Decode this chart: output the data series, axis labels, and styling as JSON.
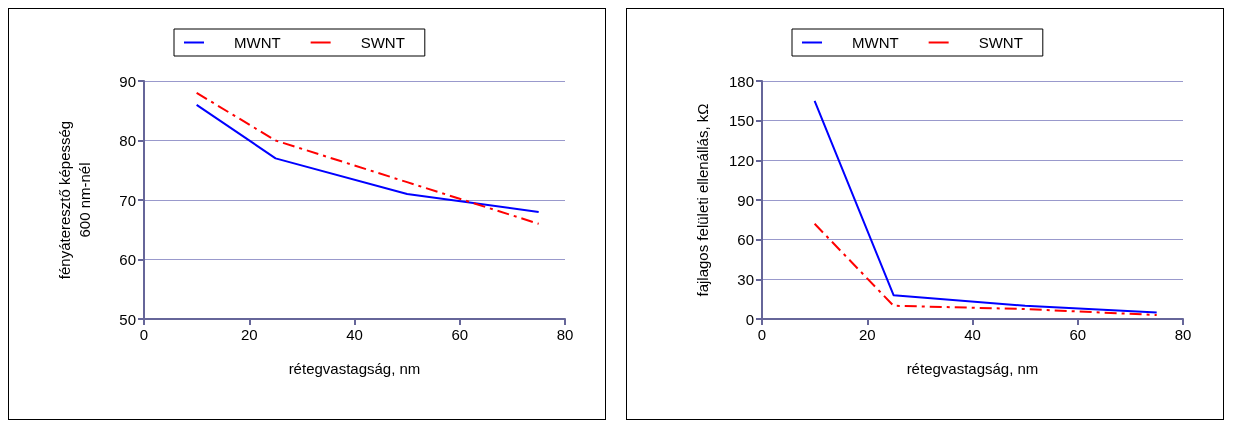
{
  "chart_data": [
    {
      "type": "line",
      "xlabel": "rétegvastagság, nm",
      "ylabel": "fényáteresztő képesség\n600 nm-nél",
      "x": [
        10,
        25,
        50,
        75
      ],
      "series": [
        {
          "name": "MWNT",
          "color": "#0000ff",
          "values": [
            86,
            77,
            71,
            68
          ],
          "line_style": "solid"
        },
        {
          "name": "SWNT",
          "color": "#ff0000",
          "values": [
            88,
            80,
            73,
            66
          ],
          "line_style": "dashed"
        }
      ],
      "xlim": [
        0,
        80
      ],
      "xticks": [
        0,
        20,
        40,
        60,
        80
      ],
      "ylim": [
        50,
        90
      ],
      "yticks": [
        50,
        60,
        70,
        80,
        90
      ],
      "grid": "y",
      "legend": "top",
      "marker": "none"
    },
    {
      "type": "line",
      "xlabel": "rétegvastagság, nm",
      "ylabel": "fajlagos felületi ellenállás, kΩ",
      "x": [
        10,
        25,
        50,
        75
      ],
      "series": [
        {
          "name": "MWNT",
          "color": "#0000ff",
          "values": [
            165,
            18,
            10,
            5
          ],
          "line_style": "solid"
        },
        {
          "name": "SWNT",
          "color": "#ff0000",
          "values": [
            72,
            10,
            7.5,
            3
          ],
          "line_style": "dashed"
        }
      ],
      "xlim": [
        0,
        80
      ],
      "xticks": [
        0,
        20,
        40,
        60,
        80
      ],
      "ylim": [
        0,
        180
      ],
      "yticks": [
        0,
        30,
        60,
        90,
        120,
        150,
        180
      ],
      "grid": "y",
      "legend": "top",
      "marker": "none"
    }
  ]
}
